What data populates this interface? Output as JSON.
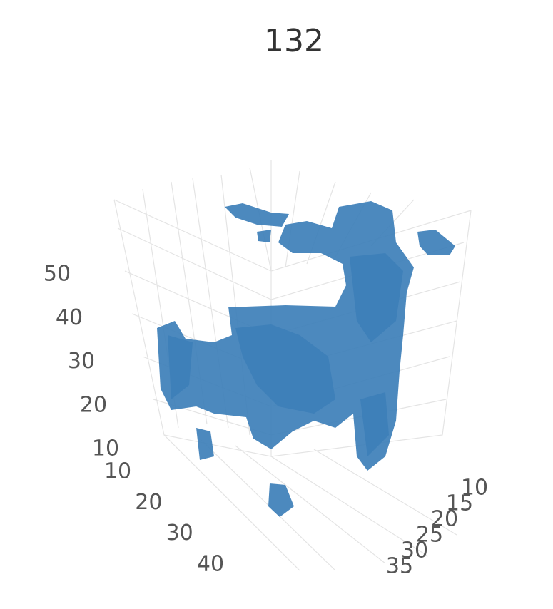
{
  "chart_data": {
    "type": "isosurface",
    "title": "132",
    "color": "#3d7fb8",
    "xlim": [
      10,
      40
    ],
    "xticks": [
      10,
      20,
      30,
      40
    ],
    "ylim": [
      10,
      35
    ],
    "yticks": [
      10,
      15,
      20,
      25,
      30,
      35
    ],
    "zlim": [
      10,
      50
    ],
    "zticks": [
      10,
      20,
      30,
      40,
      50
    ],
    "grid": true
  }
}
